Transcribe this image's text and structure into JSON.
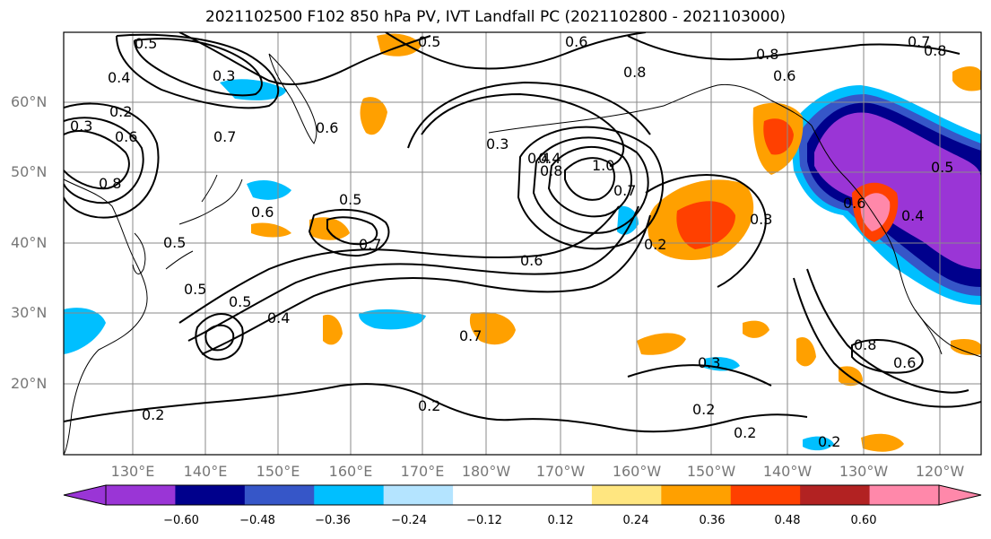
{
  "title": "2021102500 F102 850 hPa PV, IVT Landfall PC (2021102800 - 2021103000)",
  "lat_labels": [
    "60°N",
    "50°N",
    "40°N",
    "30°N",
    "20°N"
  ],
  "lon_labels": [
    "130°E",
    "140°E",
    "150°E",
    "160°E",
    "170°E",
    "180°W",
    "170°W",
    "160°W",
    "150°W",
    "140°W",
    "130°W",
    "120°W"
  ],
  "colorbar": {
    "colors": [
      "#9a35d6",
      "#00008c",
      "#3656c8",
      "#00bfff",
      "#b4e4ff",
      "#ffffff",
      "#ffffff",
      "#ffe680",
      "#ffa000",
      "#ff4000",
      "#b22222",
      "#ff88aa"
    ],
    "ticks": [
      "−0.60",
      "−0.48",
      "−0.36",
      "−0.24",
      "−0.12",
      "0.12",
      "0.24",
      "0.36",
      "0.48",
      "0.60"
    ]
  },
  "contour_labels": [
    "0.5",
    "0.4",
    "0.3",
    "0.2",
    "0.3",
    "0.6",
    "0.8",
    "0.7",
    "0.6",
    "0.5",
    "0.7",
    "0.5",
    "0.6",
    "0.5",
    "0.4",
    "0.5",
    "0.7",
    "0.4",
    "0.5",
    "0.3",
    "0.4",
    "0.8",
    "1.0",
    "0.7",
    "0.6",
    "0.2",
    "0.2",
    "0.2",
    "0.3",
    "0.2",
    "0.2",
    "0.3",
    "0.6",
    "0.4",
    "0.8",
    "0.6",
    "0.2",
    "0.8",
    "0.6",
    "0.8",
    "0.6",
    "0.7",
    "0.8",
    "0.5"
  ]
}
